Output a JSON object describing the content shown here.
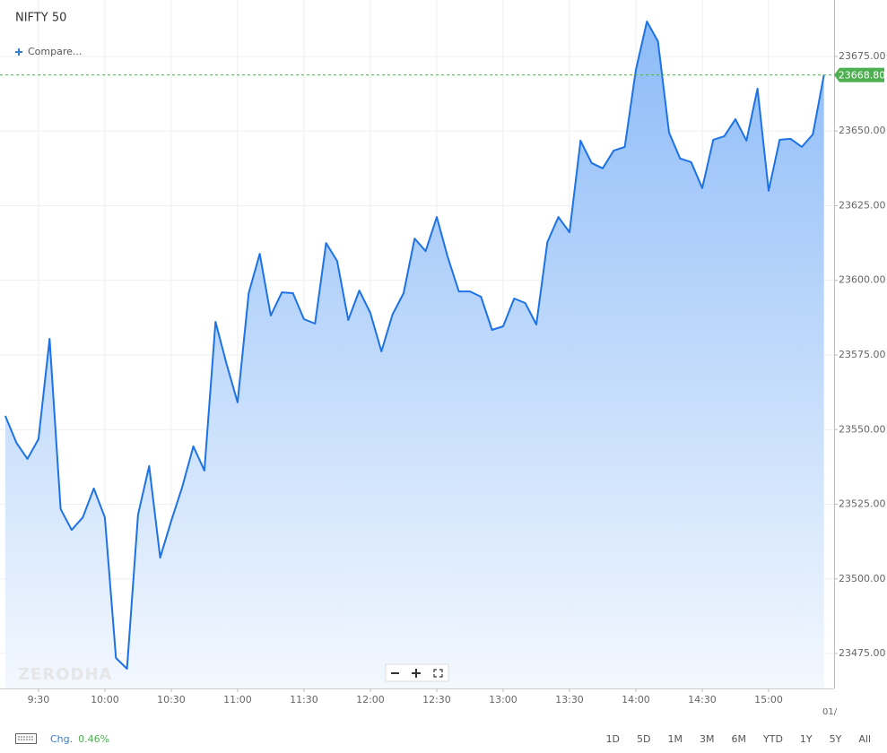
{
  "chart_data": {
    "type": "area",
    "title": "NIFTY 50",
    "compare_label": "Compare...",
    "watermark": "ZERODHA",
    "x": [
      555,
      560,
      565,
      570,
      575,
      580,
      585,
      590,
      595,
      600,
      605,
      610,
      615,
      620,
      625,
      630,
      635,
      640,
      645,
      650,
      655,
      660,
      665,
      670,
      675,
      680,
      685,
      690,
      695,
      700,
      705,
      710,
      715,
      720,
      725,
      730,
      735,
      740,
      745,
      750,
      755,
      760,
      765,
      770,
      775,
      780,
      785,
      790,
      795,
      800,
      805,
      810,
      815,
      820,
      825,
      830,
      835,
      840,
      845,
      850,
      855,
      860,
      865,
      870,
      875,
      880,
      885,
      890,
      895,
      900,
      905,
      910,
      915,
      920,
      925
    ],
    "values": [
      23554.6,
      23545.6,
      23540.2,
      23546.8,
      23580.4,
      23523.4,
      23516.4,
      23520.6,
      23530.3,
      23520.6,
      23473.5,
      23469.9,
      23521.5,
      23537.8,
      23507.1,
      23519.4,
      23530.9,
      23544.4,
      23536.3,
      23586.1,
      23572.0,
      23559.1,
      23595.7,
      23608.9,
      23588.2,
      23596.0,
      23595.7,
      23587.0,
      23585.5,
      23612.5,
      23606.5,
      23586.7,
      23596.6,
      23589.1,
      23576.2,
      23588.5,
      23595.7,
      23614.0,
      23609.8,
      23621.2,
      23607.7,
      23596.3,
      23596.3,
      23594.5,
      23583.4,
      23584.6,
      23593.9,
      23592.4,
      23585.2,
      23612.8,
      23621.2,
      23616.1,
      23646.8,
      23639.3,
      23637.5,
      23643.5,
      23644.7,
      23670.5,
      23686.7,
      23680.1,
      23649.5,
      23640.8,
      23639.6,
      23630.9,
      23647.1,
      23648.3,
      23654.0,
      23646.8,
      23664.2,
      23630.0,
      23647.1,
      23647.4,
      23644.7,
      23648.9,
      23668.8
    ],
    "color": "#1c72e6",
    "xlim": [
      552.6,
      929.6
    ],
    "ylim": [
      23463.3,
      23693.9
    ],
    "xticks": [
      {
        "value": 570,
        "label": "9:30"
      },
      {
        "value": 600,
        "label": "10:00"
      },
      {
        "value": 630,
        "label": "10:30"
      },
      {
        "value": 660,
        "label": "11:00"
      },
      {
        "value": 690,
        "label": "11:30"
      },
      {
        "value": 720,
        "label": "12:00"
      },
      {
        "value": 750,
        "label": "12:30"
      },
      {
        "value": 780,
        "label": "13:00"
      },
      {
        "value": 810,
        "label": "13:30"
      },
      {
        "value": 840,
        "label": "14:00"
      },
      {
        "value": 870,
        "label": "14:30"
      },
      {
        "value": 900,
        "label": "15:00"
      }
    ],
    "yticks": [
      {
        "value": 23475,
        "label": "23475.00"
      },
      {
        "value": 23500,
        "label": "23500.00"
      },
      {
        "value": 23525,
        "label": "23525.00"
      },
      {
        "value": 23550,
        "label": "23550.00"
      },
      {
        "value": 23575,
        "label": "23575.00"
      },
      {
        "value": 23600,
        "label": "23600.00"
      },
      {
        "value": 23625,
        "label": "23625.00"
      },
      {
        "value": 23650,
        "label": "23650.00"
      },
      {
        "value": 23675,
        "label": "23675.00"
      }
    ],
    "grid": true,
    "last_price": {
      "value": 23668.8,
      "label": "23668.80",
      "color": "#4caf50"
    },
    "date_label": "01/",
    "change_label": "Chg.",
    "change_value": "0.46%",
    "ranges": [
      "1D",
      "5D",
      "1M",
      "3M",
      "6M",
      "YTD",
      "1Y",
      "5Y",
      "All"
    ]
  }
}
